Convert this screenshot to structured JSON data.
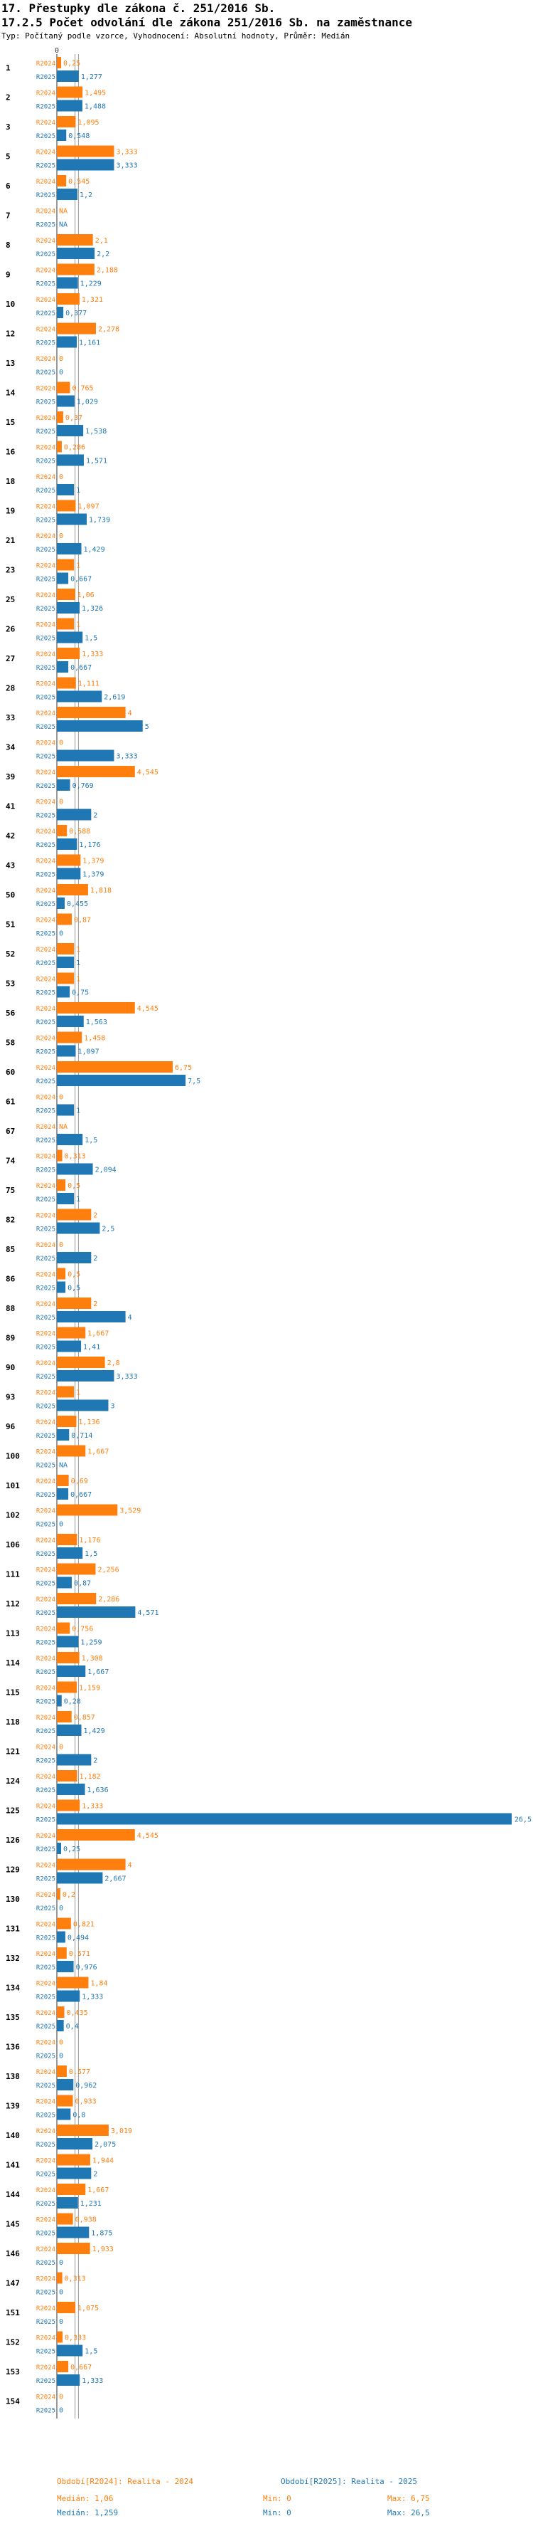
{
  "header": {
    "title": "17. Přestupky dle zákona č. 251/2016 Sb.",
    "subtitle": "17.2.5 Počet odvolání dle zákona 251/2016 Sb. na zaměstnance",
    "meta": "Typ: Počítaný podle vzorce, Vyhodnocení: Absolutní hodnoty, Průměr: Medián"
  },
  "colors": {
    "r2024": "#ff7f0e",
    "r2025": "#1f77b4",
    "median": "#999999"
  },
  "chart_data": {
    "type": "bar",
    "orientation": "horizontal",
    "axis_tick": "0",
    "series_labels": [
      "R2024",
      "R2025"
    ],
    "xlim": [
      0,
      26.5
    ],
    "median_2024": 1.06,
    "median_2025": 1.259,
    "rows": [
      {
        "id": "1",
        "r2024": {
          "v": 0.25,
          "label": "0,25"
        },
        "r2025": {
          "v": 1.277,
          "label": "1,277"
        }
      },
      {
        "id": "2",
        "r2024": {
          "v": 1.495,
          "label": "1,495"
        },
        "r2025": {
          "v": 1.488,
          "label": "1,488"
        }
      },
      {
        "id": "3",
        "r2024": {
          "v": 1.095,
          "label": "1,095"
        },
        "r2025": {
          "v": 0.548,
          "label": "0,548"
        }
      },
      {
        "id": "5",
        "r2024": {
          "v": 3.333,
          "label": "3,333"
        },
        "r2025": {
          "v": 3.333,
          "label": "3,333"
        }
      },
      {
        "id": "6",
        "r2024": {
          "v": 0.545,
          "label": "0,545"
        },
        "r2025": {
          "v": 1.2,
          "label": "1,2"
        }
      },
      {
        "id": "7",
        "r2024": {
          "v": 0,
          "label": "NA"
        },
        "r2025": {
          "v": 0,
          "label": "NA"
        }
      },
      {
        "id": "8",
        "r2024": {
          "v": 2.1,
          "label": "2,1"
        },
        "r2025": {
          "v": 2.2,
          "label": "2,2"
        }
      },
      {
        "id": "9",
        "r2024": {
          "v": 2.188,
          "label": "2,188"
        },
        "r2025": {
          "v": 1.229,
          "label": "1,229"
        }
      },
      {
        "id": "10",
        "r2024": {
          "v": 1.321,
          "label": "1,321"
        },
        "r2025": {
          "v": 0.377,
          "label": "0,377"
        }
      },
      {
        "id": "12",
        "r2024": {
          "v": 2.278,
          "label": "2,278"
        },
        "r2025": {
          "v": 1.161,
          "label": "1,161"
        }
      },
      {
        "id": "13",
        "r2024": {
          "v": 0,
          "label": "0"
        },
        "r2025": {
          "v": 0,
          "label": "0"
        }
      },
      {
        "id": "14",
        "r2024": {
          "v": 0.765,
          "label": "0,765"
        },
        "r2025": {
          "v": 1.029,
          "label": "1,029"
        }
      },
      {
        "id": "15",
        "r2024": {
          "v": 0.37,
          "label": "0,37"
        },
        "r2025": {
          "v": 1.538,
          "label": "1,538"
        }
      },
      {
        "id": "16",
        "r2024": {
          "v": 0.286,
          "label": "0,286"
        },
        "r2025": {
          "v": 1.571,
          "label": "1,571"
        }
      },
      {
        "id": "18",
        "r2024": {
          "v": 0,
          "label": "0"
        },
        "r2025": {
          "v": 1,
          "label": "1"
        }
      },
      {
        "id": "19",
        "r2024": {
          "v": 1.097,
          "label": "1,097"
        },
        "r2025": {
          "v": 1.739,
          "label": "1,739"
        }
      },
      {
        "id": "21",
        "r2024": {
          "v": 0,
          "label": "0"
        },
        "r2025": {
          "v": 1.429,
          "label": "1,429"
        }
      },
      {
        "id": "23",
        "r2024": {
          "v": 1,
          "label": "1"
        },
        "r2025": {
          "v": 0.667,
          "label": "0,667"
        }
      },
      {
        "id": "25",
        "r2024": {
          "v": 1.06,
          "label": "1,06"
        },
        "r2025": {
          "v": 1.326,
          "label": "1,326"
        }
      },
      {
        "id": "26",
        "r2024": {
          "v": 1,
          "label": "1"
        },
        "r2025": {
          "v": 1.5,
          "label": "1,5"
        }
      },
      {
        "id": "27",
        "r2024": {
          "v": 1.333,
          "label": "1,333"
        },
        "r2025": {
          "v": 0.667,
          "label": "0,667"
        }
      },
      {
        "id": "28",
        "r2024": {
          "v": 1.111,
          "label": "1,111"
        },
        "r2025": {
          "v": 2.619,
          "label": "2,619"
        }
      },
      {
        "id": "33",
        "r2024": {
          "v": 4,
          "label": "4"
        },
        "r2025": {
          "v": 5,
          "label": "5"
        }
      },
      {
        "id": "34",
        "r2024": {
          "v": 0,
          "label": "0"
        },
        "r2025": {
          "v": 3.333,
          "label": "3,333"
        }
      },
      {
        "id": "39",
        "r2024": {
          "v": 4.545,
          "label": "4,545"
        },
        "r2025": {
          "v": 0.769,
          "label": "0,769"
        }
      },
      {
        "id": "41",
        "r2024": {
          "v": 0,
          "label": "0"
        },
        "r2025": {
          "v": 2,
          "label": "2"
        }
      },
      {
        "id": "42",
        "r2024": {
          "v": 0.588,
          "label": "0,588"
        },
        "r2025": {
          "v": 1.176,
          "label": "1,176"
        }
      },
      {
        "id": "43",
        "r2024": {
          "v": 1.379,
          "label": "1,379"
        },
        "r2025": {
          "v": 1.379,
          "label": "1,379"
        }
      },
      {
        "id": "50",
        "r2024": {
          "v": 1.818,
          "label": "1,818"
        },
        "r2025": {
          "v": 0.455,
          "label": "0,455"
        }
      },
      {
        "id": "51",
        "r2024": {
          "v": 0.87,
          "label": "0,87"
        },
        "r2025": {
          "v": 0,
          "label": "0"
        }
      },
      {
        "id": "52",
        "r2024": {
          "v": 1,
          "label": "1"
        },
        "r2025": {
          "v": 1,
          "label": "1"
        }
      },
      {
        "id": "53",
        "r2024": {
          "v": 1,
          "label": "1"
        },
        "r2025": {
          "v": 0.75,
          "label": "0,75"
        }
      },
      {
        "id": "56",
        "r2024": {
          "v": 4.545,
          "label": "4,545"
        },
        "r2025": {
          "v": 1.563,
          "label": "1,563"
        }
      },
      {
        "id": "58",
        "r2024": {
          "v": 1.458,
          "label": "1,458"
        },
        "r2025": {
          "v": 1.097,
          "label": "1,097"
        }
      },
      {
        "id": "60",
        "r2024": {
          "v": 6.75,
          "label": "6,75"
        },
        "r2025": {
          "v": 7.5,
          "label": "7,5"
        }
      },
      {
        "id": "61",
        "r2024": {
          "v": 0,
          "label": "0"
        },
        "r2025": {
          "v": 1,
          "label": "1"
        }
      },
      {
        "id": "67",
        "r2024": {
          "v": 0,
          "label": "NA"
        },
        "r2025": {
          "v": 1.5,
          "label": "1,5"
        }
      },
      {
        "id": "74",
        "r2024": {
          "v": 0.313,
          "label": "0,313"
        },
        "r2025": {
          "v": 2.094,
          "label": "2,094"
        }
      },
      {
        "id": "75",
        "r2024": {
          "v": 0.5,
          "label": "0,5"
        },
        "r2025": {
          "v": 1,
          "label": "1"
        }
      },
      {
        "id": "82",
        "r2024": {
          "v": 2,
          "label": "2"
        },
        "r2025": {
          "v": 2.5,
          "label": "2,5"
        }
      },
      {
        "id": "85",
        "r2024": {
          "v": 0,
          "label": "0"
        },
        "r2025": {
          "v": 2,
          "label": "2"
        }
      },
      {
        "id": "86",
        "r2024": {
          "v": 0.5,
          "label": "0,5"
        },
        "r2025": {
          "v": 0.5,
          "label": "0,5"
        }
      },
      {
        "id": "88",
        "r2024": {
          "v": 2,
          "label": "2"
        },
        "r2025": {
          "v": 4,
          "label": "4"
        }
      },
      {
        "id": "89",
        "r2024": {
          "v": 1.667,
          "label": "1,667"
        },
        "r2025": {
          "v": 1.41,
          "label": "1,41"
        }
      },
      {
        "id": "90",
        "r2024": {
          "v": 2.8,
          "label": "2,8"
        },
        "r2025": {
          "v": 3.333,
          "label": "3,333"
        }
      },
      {
        "id": "93",
        "r2024": {
          "v": 1,
          "label": "1"
        },
        "r2025": {
          "v": 3,
          "label": "3"
        }
      },
      {
        "id": "96",
        "r2024": {
          "v": 1.136,
          "label": "1,136"
        },
        "r2025": {
          "v": 0.714,
          "label": "0,714"
        }
      },
      {
        "id": "100",
        "r2024": {
          "v": 1.667,
          "label": "1,667"
        },
        "r2025": {
          "v": 0,
          "label": "NA"
        }
      },
      {
        "id": "101",
        "r2024": {
          "v": 0.69,
          "label": "0,69"
        },
        "r2025": {
          "v": 0.667,
          "label": "0,667"
        }
      },
      {
        "id": "102",
        "r2024": {
          "v": 3.529,
          "label": "3,529"
        },
        "r2025": {
          "v": 0,
          "label": "0"
        }
      },
      {
        "id": "106",
        "r2024": {
          "v": 1.176,
          "label": "1,176"
        },
        "r2025": {
          "v": 1.5,
          "label": "1,5"
        }
      },
      {
        "id": "111",
        "r2024": {
          "v": 2.256,
          "label": "2,256"
        },
        "r2025": {
          "v": 0.87,
          "label": "0,87"
        }
      },
      {
        "id": "112",
        "r2024": {
          "v": 2.286,
          "label": "2,286"
        },
        "r2025": {
          "v": 4.571,
          "label": "4,571"
        }
      },
      {
        "id": "113",
        "r2024": {
          "v": 0.756,
          "label": "0,756"
        },
        "r2025": {
          "v": 1.259,
          "label": "1,259"
        }
      },
      {
        "id": "114",
        "r2024": {
          "v": 1.308,
          "label": "1,308"
        },
        "r2025": {
          "v": 1.667,
          "label": "1,667"
        }
      },
      {
        "id": "115",
        "r2024": {
          "v": 1.159,
          "label": "1,159"
        },
        "r2025": {
          "v": 0.28,
          "label": "0,28"
        }
      },
      {
        "id": "118",
        "r2024": {
          "v": 0.857,
          "label": "0,857"
        },
        "r2025": {
          "v": 1.429,
          "label": "1,429"
        }
      },
      {
        "id": "121",
        "r2024": {
          "v": 0,
          "label": "0"
        },
        "r2025": {
          "v": 2,
          "label": "2"
        }
      },
      {
        "id": "124",
        "r2024": {
          "v": 1.182,
          "label": "1,182"
        },
        "r2025": {
          "v": 1.636,
          "label": "1,636"
        }
      },
      {
        "id": "125",
        "r2024": {
          "v": 1.333,
          "label": "1,333"
        },
        "r2025": {
          "v": 26.5,
          "label": "26,5"
        }
      },
      {
        "id": "126",
        "r2024": {
          "v": 4.545,
          "label": "4,545"
        },
        "r2025": {
          "v": 0.25,
          "label": "0,25"
        }
      },
      {
        "id": "129",
        "r2024": {
          "v": 4,
          "label": "4"
        },
        "r2025": {
          "v": 2.667,
          "label": "2,667"
        }
      },
      {
        "id": "130",
        "r2024": {
          "v": 0.2,
          "label": "0,2"
        },
        "r2025": {
          "v": 0,
          "label": "0"
        }
      },
      {
        "id": "131",
        "r2024": {
          "v": 0.821,
          "label": "0,821"
        },
        "r2025": {
          "v": 0.494,
          "label": "0,494"
        }
      },
      {
        "id": "132",
        "r2024": {
          "v": 0.571,
          "label": "0,571"
        },
        "r2025": {
          "v": 0.976,
          "label": "0,976"
        }
      },
      {
        "id": "134",
        "r2024": {
          "v": 1.84,
          "label": "1,84"
        },
        "r2025": {
          "v": 1.333,
          "label": "1,333"
        }
      },
      {
        "id": "135",
        "r2024": {
          "v": 0.435,
          "label": "0,435"
        },
        "r2025": {
          "v": 0.4,
          "label": "0,4"
        }
      },
      {
        "id": "136",
        "r2024": {
          "v": 0,
          "label": "0"
        },
        "r2025": {
          "v": 0,
          "label": "0"
        }
      },
      {
        "id": "138",
        "r2024": {
          "v": 0.577,
          "label": "0,577"
        },
        "r2025": {
          "v": 0.962,
          "label": "0,962"
        }
      },
      {
        "id": "139",
        "r2024": {
          "v": 0.933,
          "label": "0,933"
        },
        "r2025": {
          "v": 0.8,
          "label": "0,8"
        }
      },
      {
        "id": "140",
        "r2024": {
          "v": 3.019,
          "label": "3,019"
        },
        "r2025": {
          "v": 2.075,
          "label": "2,075"
        }
      },
      {
        "id": "141",
        "r2024": {
          "v": 1.944,
          "label": "1,944"
        },
        "r2025": {
          "v": 2,
          "label": "2"
        }
      },
      {
        "id": "144",
        "r2024": {
          "v": 1.667,
          "label": "1,667"
        },
        "r2025": {
          "v": 1.231,
          "label": "1,231"
        }
      },
      {
        "id": "145",
        "r2024": {
          "v": 0.938,
          "label": "0,938"
        },
        "r2025": {
          "v": 1.875,
          "label": "1,875"
        }
      },
      {
        "id": "146",
        "r2024": {
          "v": 1.933,
          "label": "1,933"
        },
        "r2025": {
          "v": 0,
          "label": "0"
        }
      },
      {
        "id": "147",
        "r2024": {
          "v": 0.313,
          "label": "0,313"
        },
        "r2025": {
          "v": 0,
          "label": "0"
        }
      },
      {
        "id": "151",
        "r2024": {
          "v": 1.075,
          "label": "1,075"
        },
        "r2025": {
          "v": 0,
          "label": "0"
        }
      },
      {
        "id": "152",
        "r2024": {
          "v": 0.333,
          "label": "0,333"
        },
        "r2025": {
          "v": 1.5,
          "label": "1,5"
        }
      },
      {
        "id": "153",
        "r2024": {
          "v": 0.667,
          "label": "0,667"
        },
        "r2025": {
          "v": 1.333,
          "label": "1,333"
        }
      },
      {
        "id": "154",
        "r2024": {
          "v": 0,
          "label": "0"
        },
        "r2025": {
          "v": 0,
          "label": "0"
        }
      }
    ]
  },
  "footer": {
    "legend_2024": "Období[R2024]: Realita - 2024",
    "legend_2025": "Období[R2025]: Realita - 2025",
    "median_2024": "Medián: 1,06",
    "min_2024": "Min: 0",
    "max_2024": "Max: 6,75",
    "median_2025": "Medián: 1,259",
    "min_2025": "Min: 0",
    "max_2025": "Max: 26,5"
  }
}
